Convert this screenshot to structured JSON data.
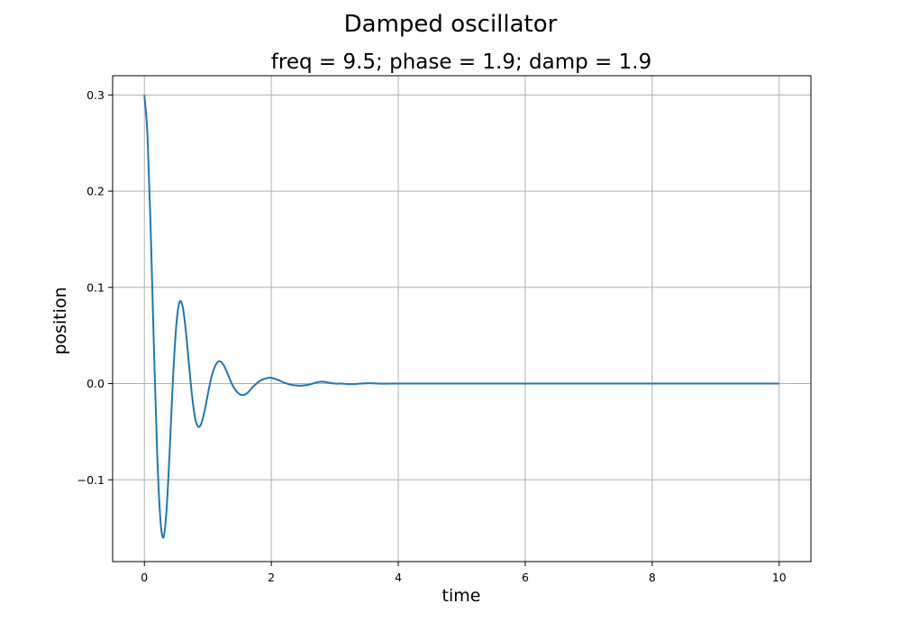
{
  "chart_data": {
    "type": "line",
    "suptitle": "Damped oscillator",
    "title": "freq = 9.5; phase = 1.9; damp = 1.9",
    "xlabel": "time",
    "ylabel": "position",
    "xlim": [
      -0.5,
      10.5
    ],
    "ylim": [
      -0.185,
      0.32
    ],
    "xticks": [
      0,
      2,
      4,
      6,
      8,
      10
    ],
    "yticks": [
      -0.1,
      0.0,
      0.1,
      0.2,
      0.3
    ],
    "xtick_labels": [
      "0",
      "2",
      "4",
      "6",
      "8",
      "10"
    ],
    "ytick_labels": [
      "−0.1",
      "0.0",
      "0.1",
      "0.2",
      "0.3"
    ],
    "grid": true,
    "series": [
      {
        "color": "#1f77b4",
        "x": [
          0,
          0.05,
          0.1,
          0.15,
          0.2,
          0.25,
          0.3,
          0.35,
          0.4,
          0.45,
          0.5,
          0.55,
          0.6,
          0.65,
          0.7,
          0.75,
          0.8,
          0.85,
          0.9,
          0.95,
          1.0,
          1.05,
          1.1,
          1.15,
          1.2,
          1.25,
          1.3,
          1.35,
          1.4,
          1.45,
          1.5,
          1.55,
          1.6,
          1.65,
          1.7,
          1.75,
          1.8,
          1.85,
          1.9,
          1.95,
          2.0,
          2.1,
          2.2,
          2.3,
          2.4,
          2.5,
          2.6,
          2.7,
          2.8,
          2.9,
          3.0,
          3.1,
          3.2,
          3.3,
          3.4,
          3.5,
          3.6,
          3.7,
          3.8,
          3.9,
          4.0,
          4.5,
          5,
          6,
          7,
          8,
          9,
          10
        ],
        "y": [
          0.3,
          0.257,
          0.159,
          0.039,
          -0.069,
          -0.139,
          -0.16,
          -0.131,
          -0.068,
          0.004,
          0.058,
          0.084,
          0.081,
          0.057,
          0.022,
          -0.012,
          -0.036,
          -0.045,
          -0.041,
          -0.028,
          -0.011,
          0.005,
          0.016,
          0.022,
          0.023,
          0.019,
          0.012,
          0.004,
          -0.003,
          -0.008,
          -0.011,
          -0.012,
          -0.011,
          -0.008,
          -0.004,
          -0.001,
          0.002,
          0.004,
          0.005,
          0.006,
          0.006,
          0.004,
          0.001,
          -0.001,
          -0.002,
          -0.002,
          -0.001,
          0.001,
          0.002,
          0.001,
          0.0,
          0.0,
          -0.0005,
          -0.0005,
          0.0,
          0.0003,
          0.0003,
          0.0,
          -0.0001,
          0.0,
          0.0,
          0.0,
          0.0,
          0.0,
          0.0,
          0.0,
          0.0,
          0.0
        ]
      }
    ]
  }
}
